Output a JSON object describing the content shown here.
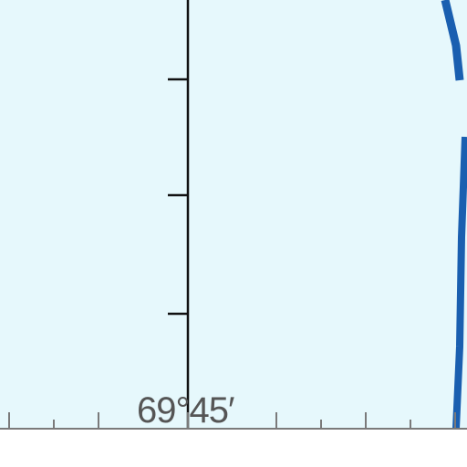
{
  "map": {
    "water_color": "#e6f8fc",
    "coast_color": "#1a5fb0",
    "grid_color": "#111111",
    "scale_color": "#7a7a7a",
    "label_color": "#555555",
    "meridian_label": "69°45′"
  }
}
